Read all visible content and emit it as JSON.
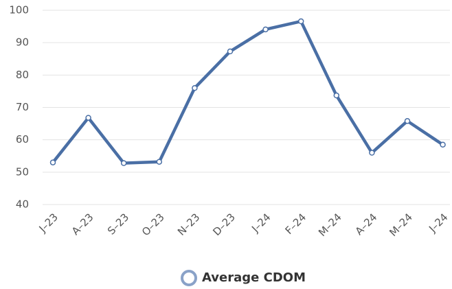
{
  "chart_data": {
    "type": "line",
    "categories": [
      "J–23",
      "A–23",
      "S–23",
      "O–23",
      "N–23",
      "D–23",
      "J–24",
      "F–24",
      "M–24",
      "A–24",
      "M–24",
      "J–24"
    ],
    "series": [
      {
        "name": "Average CDOM",
        "color": "#4a6fa5",
        "values": [
          53,
          66.8,
          52.8,
          53.2,
          76,
          87.3,
          94.1,
          96.6,
          73.7,
          56,
          65.8,
          58.5
        ]
      }
    ],
    "ylim": [
      40,
      100
    ],
    "yticks": [
      40,
      50,
      60,
      70,
      80,
      90,
      100
    ],
    "grid": true,
    "legend": "bottom"
  }
}
